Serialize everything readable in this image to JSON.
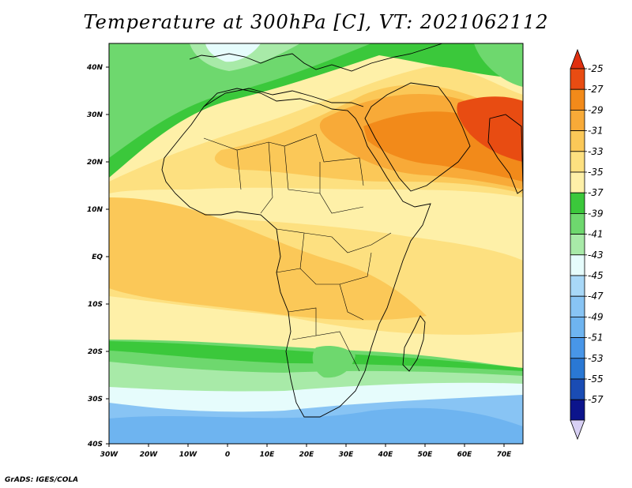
{
  "title": "Temperature at 300hPa [C], VT: 2021062112",
  "footer": "GrADS: IGES/COLA",
  "map": {
    "region": "Africa",
    "lon_labels": [
      "30W",
      "20W",
      "10W",
      "0",
      "10E",
      "20E",
      "30E",
      "40E",
      "50E",
      "60E",
      "70E"
    ],
    "lat_labels": [
      "40N",
      "30N",
      "20N",
      "10N",
      "EQ",
      "10S",
      "20S",
      "30S",
      "40S"
    ],
    "lon_range": [
      -30,
      75
    ],
    "lat_range": [
      -40,
      45
    ]
  },
  "colorbar": {
    "labels": [
      "-25",
      "-27",
      "-29",
      "-31",
      "-33",
      "-35",
      "-37",
      "-39",
      "-41",
      "-43",
      "-45",
      "-47",
      "-49",
      "-51",
      "-53",
      "-55",
      "-57"
    ],
    "colors": [
      "#e84c12",
      "#f28a1a",
      "#f8aa38",
      "#fbc858",
      "#fde080",
      "#fef0a8",
      "#3bc83b",
      "#6ed86e",
      "#a8eaa8",
      "#e6fcfc",
      "#a8d8f8",
      "#88c4f4",
      "#6eb4f0",
      "#4896e8",
      "#2a78d4",
      "#1a4cb4",
      "#0c148c"
    ],
    "triangle_top_color": "#e03010",
    "triangle_bottom_color": "#d8d0f4"
  }
}
